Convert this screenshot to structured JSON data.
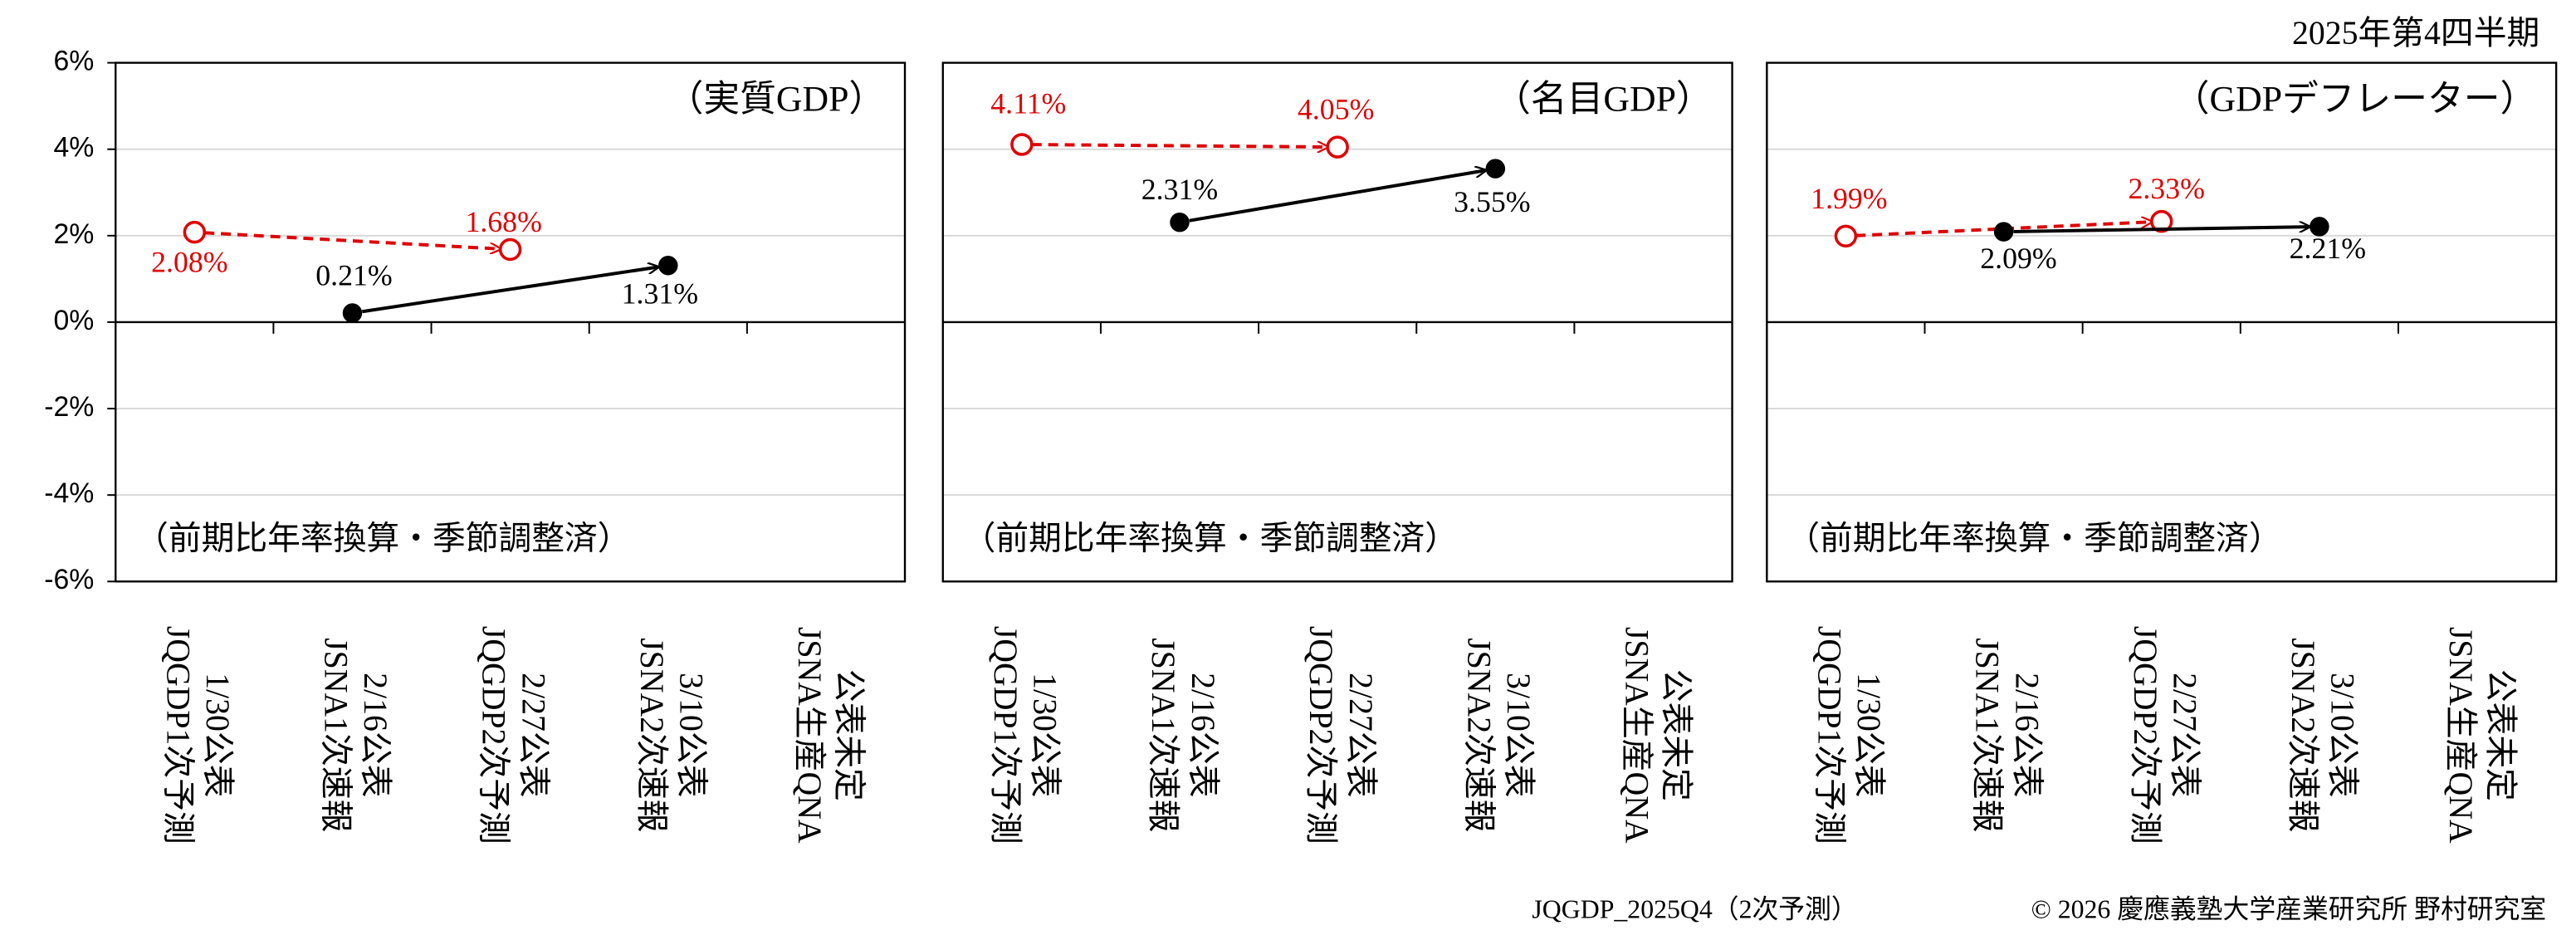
{
  "period_label": "2025年第4四半期",
  "footer_left": "JQGDP_2025Q4（2次予測）",
  "footer_right": "© 2026 慶應義塾大学産業研究所 野村研究室",
  "chart_data": [
    {
      "type": "line",
      "title": "（実質GDP）",
      "annotation": "（前期比年率換算・季節調整済）",
      "categories": [
        [
          "1/30公表",
          "JQGDP1次予測"
        ],
        [
          "2/16公表",
          "JSNA1次速報"
        ],
        [
          "2/27公表",
          "JQGDP2次予測"
        ],
        [
          "3/10公表",
          "JSNA2次速報"
        ],
        [
          "公表未定",
          "JSNA生産QNA"
        ]
      ],
      "series": [
        {
          "color": "#e00000",
          "dashed": true,
          "marker": "open",
          "values": [
            2.08,
            null,
            1.68,
            null,
            null
          ],
          "value_labels": [
            "2.08%",
            null,
            "1.68%",
            null,
            null
          ]
        },
        {
          "color": "#000000",
          "dashed": false,
          "marker": "filled",
          "values": [
            null,
            0.21,
            null,
            1.31,
            null
          ],
          "value_labels": [
            null,
            "0.21%",
            null,
            "1.31%",
            null
          ]
        }
      ],
      "ylim": [
        -6,
        6
      ],
      "yticks": [
        {
          "value": -6,
          "label": "-6%"
        },
        {
          "value": -4,
          "label": "-4%"
        },
        {
          "value": -2,
          "label": "-2%"
        },
        {
          "value": 0,
          "label": "0%"
        },
        {
          "value": 2,
          "label": "2%"
        },
        {
          "value": 4,
          "label": "4%"
        },
        {
          "value": 6,
          "label": "6%"
        }
      ],
      "grid": true
    },
    {
      "type": "line",
      "title": "（名目GDP）",
      "annotation": "（前期比年率換算・季節調整済）",
      "categories": [
        [
          "1/30公表",
          "JQGDP1次予測"
        ],
        [
          "2/16公表",
          "JSNA1次速報"
        ],
        [
          "2/27公表",
          "JQGDP2次予測"
        ],
        [
          "3/10公表",
          "JSNA2次速報"
        ],
        [
          "公表未定",
          "JSNA生産QNA"
        ]
      ],
      "series": [
        {
          "color": "#e00000",
          "dashed": true,
          "marker": "open",
          "values": [
            4.11,
            null,
            4.05,
            null,
            null
          ],
          "value_labels": [
            "4.11%",
            null,
            "4.05%",
            null,
            null
          ]
        },
        {
          "color": "#000000",
          "dashed": false,
          "marker": "filled",
          "values": [
            null,
            2.31,
            null,
            3.55,
            null
          ],
          "value_labels": [
            null,
            "2.31%",
            null,
            "3.55%",
            null
          ]
        }
      ],
      "ylim": [
        -6,
        6
      ],
      "yticks": [
        -6,
        -4,
        -2,
        0,
        2,
        4,
        6
      ],
      "grid": true
    },
    {
      "type": "line",
      "title": "（GDPデフレーター）",
      "annotation": "（前期比年率換算・季節調整済）",
      "categories": [
        [
          "1/30公表",
          "JQGDP1次予測"
        ],
        [
          "2/16公表",
          "JSNA1次速報"
        ],
        [
          "2/27公表",
          "JQGDP2次予測"
        ],
        [
          "3/10公表",
          "JSNA2次速報"
        ],
        [
          "公表未定",
          "JSNA生産QNA"
        ]
      ],
      "series": [
        {
          "color": "#e00000",
          "dashed": true,
          "marker": "open",
          "values": [
            1.99,
            null,
            2.33,
            null,
            null
          ],
          "value_labels": [
            "1.99%",
            null,
            "2.33%",
            null,
            null
          ]
        },
        {
          "color": "#000000",
          "dashed": false,
          "marker": "filled",
          "values": [
            null,
            2.09,
            null,
            2.21,
            null
          ],
          "value_labels": [
            null,
            "2.09%",
            null,
            "2.21%",
            null
          ]
        }
      ],
      "ylim": [
        -6,
        6
      ],
      "yticks": [
        -6,
        -4,
        -2,
        0,
        2,
        4,
        6
      ],
      "grid": true
    }
  ]
}
